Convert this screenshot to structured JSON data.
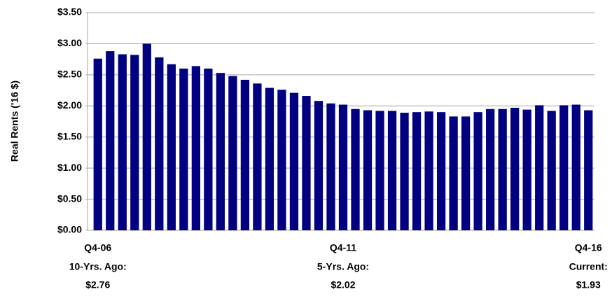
{
  "chart_data": {
    "type": "bar",
    "y_label": "Real Rents ('16 $)",
    "categories": [
      "Q4-06",
      null,
      null,
      null,
      null,
      null,
      null,
      null,
      null,
      null,
      null,
      null,
      null,
      null,
      null,
      null,
      null,
      null,
      null,
      null,
      "Q4-11",
      null,
      null,
      null,
      null,
      null,
      null,
      null,
      null,
      null,
      null,
      null,
      null,
      null,
      null,
      null,
      null,
      null,
      null,
      null,
      "Q4-16"
    ],
    "values": [
      2.76,
      2.88,
      2.83,
      2.82,
      3.0,
      2.78,
      2.67,
      2.6,
      2.64,
      2.6,
      2.53,
      2.48,
      2.42,
      2.36,
      2.29,
      2.26,
      2.21,
      2.16,
      2.08,
      2.04,
      2.02,
      1.95,
      1.93,
      1.92,
      1.92,
      1.89,
      1.9,
      1.91,
      1.9,
      1.83,
      1.83,
      1.9,
      1.95,
      1.95,
      1.97,
      1.94,
      2.01,
      1.92,
      2.01,
      2.02,
      1.93
    ],
    "color": "#000080",
    "ylim": [
      0,
      3.5
    ],
    "yticks": [
      {
        "value": 0,
        "label": "$0.00"
      },
      {
        "value": 0.5,
        "label": "$0.50"
      },
      {
        "value": 1,
        "label": "$1.00"
      },
      {
        "value": 1.5,
        "label": "$1.50"
      },
      {
        "value": 2,
        "label": "$2.00"
      },
      {
        "value": 2.5,
        "label": "$2.50"
      },
      {
        "value": 3,
        "label": "$3.00"
      },
      {
        "value": 3.5,
        "label": "$3.50"
      }
    ],
    "grid": true,
    "annotations": [
      {
        "title": "10-Yrs. Ago:",
        "text": "$2.76"
      },
      {
        "title": "5-Yrs. Ago:",
        "text": "$2.02"
      },
      {
        "title": "Current:",
        "text": "$1.93"
      }
    ]
  }
}
